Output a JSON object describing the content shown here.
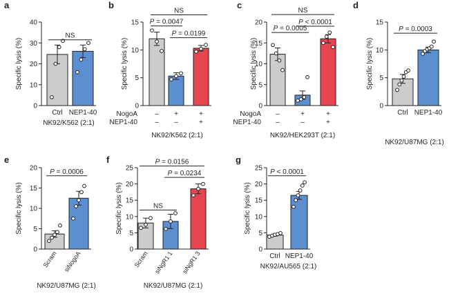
{
  "figure": {
    "y_label": "Specific lysis (%)"
  },
  "chart_data": [
    {
      "panel": "a",
      "type": "bar",
      "ylabel": "Specific lysis (%)",
      "ylim": [
        0,
        40
      ],
      "yticks": [
        0,
        10,
        20,
        30,
        40
      ],
      "categories": [
        "Ctrl",
        "NEP1-40"
      ],
      "values": [
        24.5,
        26
      ],
      "errors": [
        4.5,
        3
      ],
      "colors": [
        "#cccccc",
        "#5b8fcf"
      ],
      "points": [
        [
          4,
          20,
          28,
          31
        ],
        [
          16,
          22,
          27,
          30
        ]
      ],
      "xaxis_caption": "NK92/K562 (2:1)",
      "factor_rows": [],
      "stats": [
        {
          "label": "NS",
          "from": 0,
          "to": 1,
          "level": 31.5
        }
      ]
    },
    {
      "panel": "b",
      "type": "bar",
      "ylabel": "Specific lysis (%)",
      "ylim": [
        0,
        15
      ],
      "yticks": [
        0,
        5,
        10,
        15
      ],
      "categories": [
        "",
        "",
        ""
      ],
      "values": [
        12,
        5.3,
        10.3
      ],
      "errors": [
        1.2,
        0.6,
        0.5
      ],
      "colors": [
        "#cccccc",
        "#5b8fcf",
        "#e5454f"
      ],
      "points": [
        [
          13.5,
          11.5,
          9.8
        ],
        [
          4.7,
          5.3,
          5.8
        ],
        [
          9.7,
          10.2,
          10.9
        ]
      ],
      "xaxis_caption": "NK92/K562 (2:1)",
      "factor_rows": [
        {
          "label": "NogoA",
          "values": [
            "–",
            "+",
            "+"
          ]
        },
        {
          "label": "NEP1-40",
          "values": [
            "–",
            "–",
            "+"
          ]
        }
      ],
      "stats": [
        {
          "label": "NS",
          "from": 0,
          "to": 2,
          "level": 16.3
        },
        {
          "label": "P = 0.0047",
          "from": 0,
          "to": 1,
          "level": 14.3
        },
        {
          "label": "P = 0.0199",
          "from": 1,
          "to": 2,
          "level": 12.2
        }
      ]
    },
    {
      "panel": "c",
      "type": "bar",
      "ylabel": "Specific lysis (%)",
      "ylim": [
        0,
        20
      ],
      "yticks": [
        0,
        5,
        10,
        15,
        20
      ],
      "categories": [
        "",
        "",
        ""
      ],
      "values": [
        12.3,
        2.5,
        16
      ],
      "errors": [
        1.5,
        1,
        1
      ],
      "colors": [
        "#cccccc",
        "#5b8fcf",
        "#e5454f"
      ],
      "points": [
        [
          14.5,
          12.5,
          10.8,
          8.5
        ],
        [
          1.2,
          1.5,
          2,
          6.8
        ],
        [
          15,
          16.5,
          17.5,
          14
        ]
      ],
      "xaxis_caption": "NK92/HEK293T (2:1)",
      "factor_rows": [
        {
          "label": "NogoA",
          "values": [
            "–",
            "+",
            "+"
          ]
        },
        {
          "label": "NEP1-40",
          "values": [
            "–",
            "–",
            "+"
          ]
        }
      ],
      "stats": [
        {
          "label": "NS",
          "from": 0,
          "to": 2,
          "level": 21.8
        },
        {
          "label": "P = 0.0005",
          "from": 0,
          "to": 1,
          "level": 17.5
        },
        {
          "label": "P < 0.0001",
          "from": 1,
          "to": 2,
          "level": 19
        }
      ]
    },
    {
      "panel": "d",
      "type": "bar",
      "ylabel": "Specific lysis (%)",
      "ylim": [
        0,
        15
      ],
      "yticks": [
        0,
        5,
        10,
        15
      ],
      "categories": [
        "Ctrl",
        "NEP1-40"
      ],
      "values": [
        4.8,
        10
      ],
      "errors": [
        0.8,
        0.5
      ],
      "colors": [
        "#cccccc",
        "#5b8fcf"
      ],
      "points": [
        [
          2.8,
          3.8,
          4.5,
          5.2,
          6,
          6.3
        ],
        [
          9.3,
          9.8,
          10.1,
          10.3,
          10.6,
          11.5
        ]
      ],
      "xaxis_caption": "NK92/U87MG (2:1)",
      "factor_rows": [],
      "stats": [
        {
          "label": "P = 0.0003",
          "from": 0,
          "to": 1,
          "level": 13
        }
      ]
    },
    {
      "panel": "e",
      "type": "bar",
      "ylabel": "Specific lysis (%)",
      "ylim": [
        0,
        20
      ],
      "yticks": [
        0,
        5,
        10,
        15,
        20
      ],
      "categories": [
        "Scram",
        "siNogoA"
      ],
      "values": [
        3.7,
        12.5
      ],
      "errors": [
        0.8,
        1.7
      ],
      "colors": [
        "#cccccc",
        "#5b8fcf"
      ],
      "points": [
        [
          2,
          2.8,
          3.5,
          4.2,
          5.8
        ],
        [
          7.5,
          10.5,
          12,
          14,
          15.5
        ]
      ],
      "xaxis_caption": "NK92/U87MG (2:1)",
      "factor_rows": [],
      "stats": [
        {
          "label": "P = 0.0006",
          "from": 0,
          "to": 1,
          "level": 18
        }
      ]
    },
    {
      "panel": "f",
      "type": "bar",
      "ylabel": "Specific lysis (%)",
      "ylim": [
        0,
        25
      ],
      "yticks": [
        0,
        5,
        10,
        15,
        20,
        25
      ],
      "categories": [
        "Scram",
        "siNgR1 1",
        "siNgR1 3"
      ],
      "values": [
        8,
        8.5,
        18.5
      ],
      "errors": [
        1.5,
        2.2,
        1.5
      ],
      "colors": [
        "#cccccc",
        "#5b8fcf",
        "#e5454f"
      ],
      "points": [
        [
          6.5,
          7.5,
          9.5
        ],
        [
          6.2,
          8.5,
          11
        ],
        [
          16.5,
          18.5,
          20
        ]
      ],
      "xaxis_caption": "NK92/U87MG (2:1)",
      "factor_rows": [],
      "stats": [
        {
          "label": "NS",
          "from": 0,
          "to": 1,
          "level": 12
        },
        {
          "label": "P = 0.0156",
          "from": 0,
          "to": 2,
          "level": 25.5
        },
        {
          "label": "P = 0.0234",
          "from": 1,
          "to": 2,
          "level": 22
        }
      ]
    },
    {
      "panel": "g",
      "type": "bar",
      "ylabel": "Specific lysis (%)",
      "ylim": [
        0,
        25
      ],
      "yticks": [
        0,
        5,
        10,
        15,
        20,
        25
      ],
      "categories": [
        "Ctrl",
        "NEP1-40"
      ],
      "values": [
        4.3,
        16.5
      ],
      "errors": [
        0.3,
        1.2
      ],
      "colors": [
        "#cccccc",
        "#5b8fcf"
      ],
      "points": [
        [
          3.8,
          4.1,
          4.4,
          4.6,
          4.9
        ],
        [
          13,
          15,
          16.5,
          18,
          19.5,
          20.5
        ]
      ],
      "xaxis_caption": "NK92/AU565 (2:1)",
      "factor_rows": [],
      "stats": [
        {
          "label": "P < 0.0001",
          "from": 0,
          "to": 1,
          "level": 22.5
        }
      ]
    }
  ]
}
